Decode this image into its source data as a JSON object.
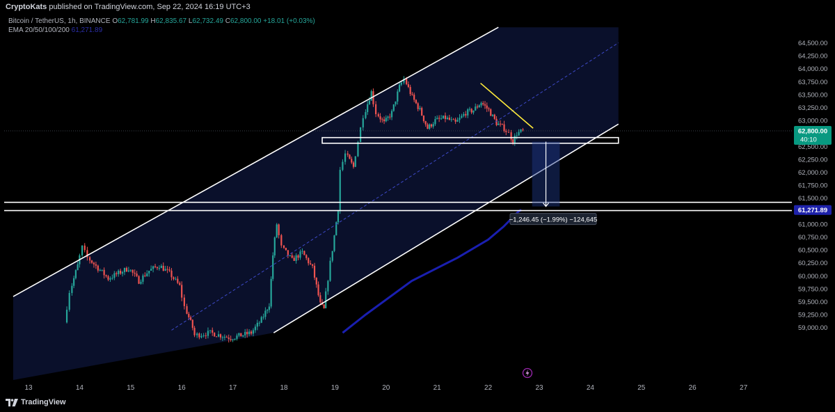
{
  "header": {
    "publisher": "CryptoKats",
    "published_text": "published on TradingView.com, Sep 22, 2024 16:19 UTC+3"
  },
  "legend": {
    "symbol": "Bitcoin / TetherUS, 1h, BINANCE",
    "open_label": "O",
    "open": "62,781.99",
    "high_label": "H",
    "high": "62,835.67",
    "low_label": "L",
    "low": "62,732.49",
    "close_label": "C",
    "close": "62,800.00",
    "change": "+18.01 (+0.03%)",
    "ema_label": "EMA 20/50/100/200",
    "ema_value": "61,271.89"
  },
  "price_badge": {
    "price": "62,800.00",
    "countdown": "40:10",
    "color": "#089981"
  },
  "ema_badge": {
    "price": "61,271.89",
    "color": "#1e22aa"
  },
  "measure_label": "−1,246.45 (−1.99%) −124,645",
  "footer": {
    "brand": "TradingView"
  },
  "colors": {
    "up": "#26a69a",
    "down": "#ef5350",
    "ema": "#1a1fb0",
    "channel": "#ffffff",
    "trend": "#ffeb3b",
    "shade": "#0b1230"
  },
  "chart_data": {
    "type": "candlestick",
    "symbol": "BTCUSDT",
    "timeframe": "1h",
    "y_axis": {
      "ticks": [
        "64,500.00",
        "64,250.00",
        "64,000.00",
        "63,750.00",
        "63,500.00",
        "63,250.00",
        "63,000.00",
        "62,750.00",
        "62,500.00",
        "62,250.00",
        "62,000.00",
        "61,750.00",
        "61,500.00",
        "61,250.00",
        "61,000.00",
        "60,750.00",
        "60,500.00",
        "60,250.00",
        "60,000.00",
        "59,750.00",
        "59,500.00",
        "59,250.00",
        "59,000.00"
      ],
      "ylim": [
        58950,
        64650
      ]
    },
    "x_axis": {
      "ticks": [
        "13",
        "14",
        "15",
        "16",
        "17",
        "18",
        "19",
        "20",
        "21",
        "22",
        "23",
        "24",
        "25",
        "26",
        "27"
      ],
      "xlim": [
        12.6,
        28.0
      ]
    },
    "last_price": 62800.0,
    "anchors": [
      [
        13.75,
        59100
      ],
      [
        13.85,
        59700
      ],
      [
        14.0,
        60200
      ],
      [
        14.1,
        60550
      ],
      [
        14.2,
        60350
      ],
      [
        14.4,
        60150
      ],
      [
        14.6,
        59950
      ],
      [
        14.8,
        60050
      ],
      [
        15.0,
        60150
      ],
      [
        15.2,
        59900
      ],
      [
        15.4,
        60100
      ],
      [
        15.6,
        60200
      ],
      [
        15.8,
        60050
      ],
      [
        16.0,
        59800
      ],
      [
        16.1,
        59400
      ],
      [
        16.25,
        59000
      ],
      [
        16.3,
        58850
      ],
      [
        16.6,
        58900
      ],
      [
        17.0,
        58800
      ],
      [
        17.4,
        58900
      ],
      [
        17.6,
        59150
      ],
      [
        17.75,
        59450
      ],
      [
        17.82,
        60400
      ],
      [
        17.9,
        61000
      ],
      [
        18.0,
        60550
      ],
      [
        18.2,
        60300
      ],
      [
        18.4,
        60450
      ],
      [
        18.6,
        60150
      ],
      [
        18.75,
        59450
      ],
      [
        18.82,
        59350
      ],
      [
        18.95,
        60250
      ],
      [
        19.1,
        61300
      ],
      [
        19.15,
        62050
      ],
      [
        19.25,
        62350
      ],
      [
        19.4,
        62100
      ],
      [
        19.5,
        62600
      ],
      [
        19.6,
        63100
      ],
      [
        19.75,
        63550
      ],
      [
        19.85,
        63150
      ],
      [
        20.0,
        62950
      ],
      [
        20.15,
        63150
      ],
      [
        20.3,
        63650
      ],
      [
        20.4,
        63800
      ],
      [
        20.55,
        63450
      ],
      [
        20.7,
        63200
      ],
      [
        20.85,
        62850
      ],
      [
        21.0,
        63000
      ],
      [
        21.2,
        63050
      ],
      [
        21.4,
        62950
      ],
      [
        21.6,
        63150
      ],
      [
        21.75,
        63200
      ],
      [
        21.9,
        63350
      ],
      [
        22.05,
        63200
      ],
      [
        22.2,
        62950
      ],
      [
        22.35,
        62850
      ],
      [
        22.45,
        62750
      ],
      [
        22.52,
        62600
      ],
      [
        22.6,
        62750
      ],
      [
        22.72,
        62800
      ]
    ],
    "ema200": [
      [
        19.15,
        58900
      ],
      [
        19.6,
        59250
      ],
      [
        20.5,
        59900
      ],
      [
        21.4,
        60350
      ],
      [
        22.0,
        60700
      ],
      [
        22.3,
        60950
      ],
      [
        22.6,
        61250
      ],
      [
        22.65,
        61271.89
      ]
    ],
    "channel_upper": [
      [
        12.7,
        59600
      ],
      [
        22.2,
        64800
      ]
    ],
    "channel_lower": [
      [
        17.8,
        58900
      ],
      [
        24.55,
        62930
      ]
    ],
    "channel_mid": [
      [
        15.8,
        58950
      ],
      [
        24.55,
        64500
      ]
    ],
    "support_box": [
      62560,
      62670
    ],
    "support_box_x": [
      18.75,
      24.55
    ],
    "horizontal_levels": [
      61420,
      61260
    ],
    "descending_trendline": [
      [
        21.85,
        63720
      ],
      [
        22.88,
        62850
      ]
    ],
    "measurement": {
      "from_price": 62590,
      "to_price": 61340,
      "x": [
        22.86,
        23.4
      ],
      "arrow_x": 23.13,
      "change": "−1,246.45 (−1.99%)",
      "ticks_change": "−124,645"
    },
    "xlabel": "",
    "ylabel": ""
  }
}
